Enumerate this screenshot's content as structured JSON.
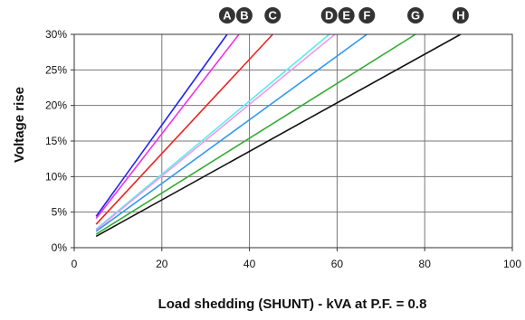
{
  "chart_data": {
    "type": "line",
    "title": "",
    "xlabel": "Load shedding (SHUNT) - kVA at P.F. = 0.8",
    "ylabel": "Voltage rise",
    "xlim": [
      0,
      100
    ],
    "ylim": [
      0,
      30
    ],
    "x_ticks": [
      0,
      20,
      40,
      60,
      80,
      100
    ],
    "x_tick_labels": [
      "0",
      "20",
      "40",
      "60",
      "80",
      "100"
    ],
    "y_ticks": [
      0,
      5,
      10,
      15,
      20,
      25,
      30
    ],
    "y_tick_labels": [
      "0%",
      "5%",
      "10%",
      "15%",
      "20%",
      "25%",
      "30%"
    ],
    "grid": true,
    "legend": "top, curve labels at line ends",
    "series": [
      {
        "name": "A",
        "color": "#2222ee",
        "x": [
          5,
          34.9
        ],
        "y": [
          4.4,
          30
        ]
      },
      {
        "name": "B",
        "color": "#ee33ee",
        "x": [
          5,
          37.6
        ],
        "y": [
          4.1,
          30
        ]
      },
      {
        "name": "C",
        "color": "#ee2222",
        "x": [
          5,
          45.3
        ],
        "y": [
          3.3,
          30
        ]
      },
      {
        "name": "D",
        "color": "#55eeee",
        "x": [
          5,
          58.2
        ],
        "y": [
          2.6,
          30
        ]
      },
      {
        "name": "E",
        "color": "#ee99ee",
        "x": [
          5,
          59.5
        ],
        "y": [
          2.5,
          30
        ]
      },
      {
        "name": "F",
        "color": "#3399ee",
        "x": [
          5,
          66.8
        ],
        "y": [
          2.3,
          30
        ]
      },
      {
        "name": "G",
        "color": "#33aa33",
        "x": [
          5,
          77.9
        ],
        "y": [
          1.9,
          30
        ]
      },
      {
        "name": "H",
        "color": "#111111",
        "x": [
          5,
          88.2
        ],
        "y": [
          1.6,
          30
        ]
      }
    ]
  }
}
